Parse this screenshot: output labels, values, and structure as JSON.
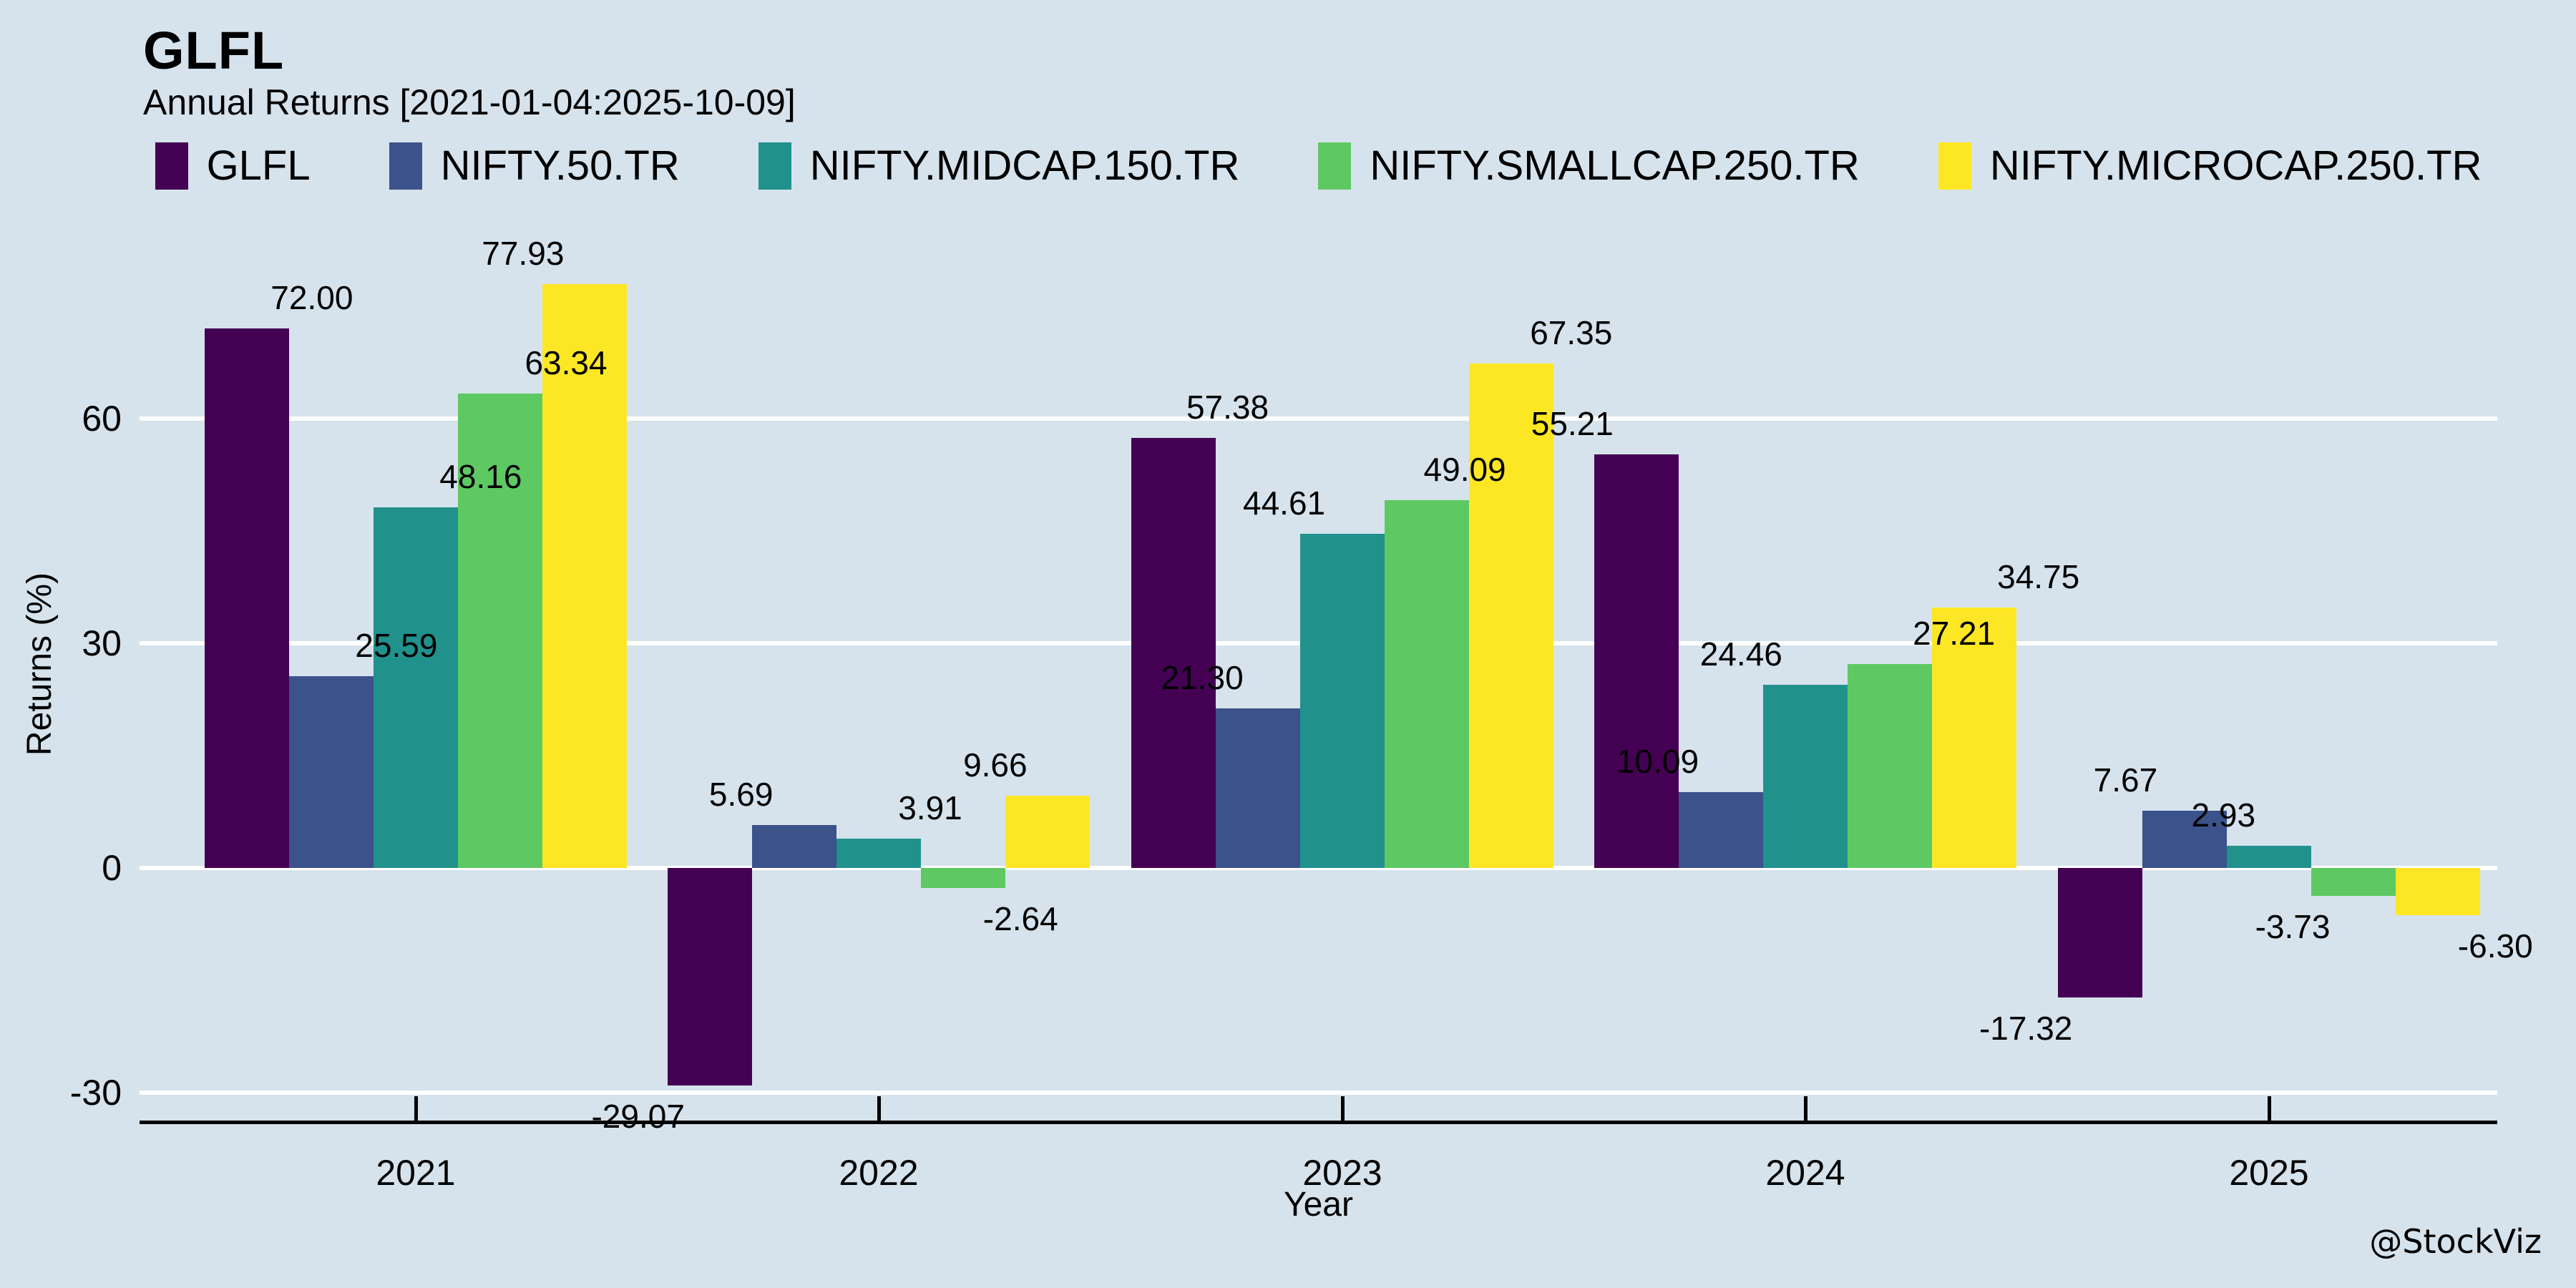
{
  "annotations": {
    "watermark": "@StockViz"
  },
  "chart_data": {
    "type": "bar",
    "title": "GLFL",
    "subtitle": "Annual Returns [2021-01-04:2025-10-09]",
    "xlabel": "Year",
    "ylabel": "Returns (%)",
    "categories": [
      "2021",
      "2022",
      "2023",
      "2024",
      "2025"
    ],
    "series": [
      {
        "name": "GLFL",
        "color": "#440154",
        "values": [
          72.0,
          -29.07,
          57.38,
          55.21,
          -17.32
        ]
      },
      {
        "name": "NIFTY.50.TR",
        "color": "#3b528b",
        "values": [
          25.59,
          5.69,
          21.3,
          10.09,
          7.67
        ]
      },
      {
        "name": "NIFTY.MIDCAP.150.TR",
        "color": "#21918c",
        "values": [
          48.16,
          3.91,
          44.61,
          24.46,
          2.93
        ]
      },
      {
        "name": "NIFTY.SMALLCAP.250.TR",
        "color": "#5ec962",
        "values": [
          63.34,
          -2.64,
          49.09,
          27.21,
          -3.73
        ]
      },
      {
        "name": "NIFTY.MICROCAP.250.TR",
        "color": "#fde725",
        "values": [
          77.93,
          9.66,
          67.35,
          34.75,
          -6.3
        ]
      }
    ],
    "yticks": [
      60,
      30,
      0,
      -30
    ],
    "ylim": [
      -33.9,
      82.5
    ],
    "gridlines": [
      60,
      30,
      0,
      -30
    ],
    "grid_color": "#ffffff",
    "axis_color": "#000000",
    "text_color": "#000000",
    "background_color": "#d6e3ec",
    "legend_position": "top",
    "bar_labels": true,
    "value_label_format": "0.00"
  }
}
